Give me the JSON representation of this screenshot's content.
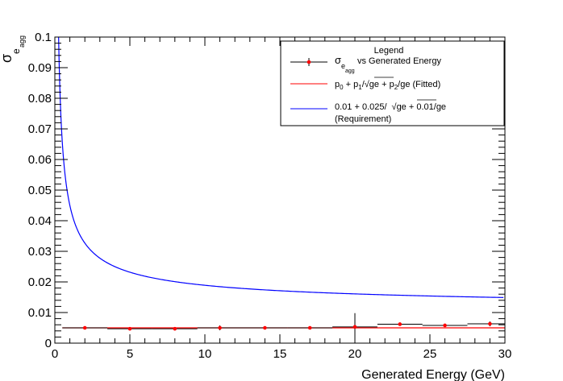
{
  "chart_data": {
    "type": "line",
    "xlabel": "Generated Energy (GeV)",
    "ylabel": {
      "main": "σ",
      "sub": "e",
      "subsub": "agg"
    },
    "xlim": [
      0,
      30
    ],
    "ylim": [
      0,
      0.1
    ],
    "x_ticks": [
      "0",
      "5",
      "10",
      "15",
      "20",
      "25",
      "30"
    ],
    "y_ticks": [
      "0",
      "0.01",
      "0.02",
      "0.03",
      "0.04",
      "0.05",
      "0.06",
      "0.07",
      "0.08",
      "0.09",
      "0.1"
    ],
    "grid": false,
    "legend_position": "top-right",
    "legend": {
      "title": "Legend",
      "entries": [
        {
          "label_parts": [
            "σ",
            "e",
            "agg",
            "vs Generated Energy"
          ],
          "color": "#000000"
        },
        {
          "label_parts": [
            "p",
            "0",
            " + p",
            "1",
            "/",
            "√ge",
            " + p",
            "2",
            "/ge (Fitted)"
          ],
          "color": "#ff0000"
        },
        {
          "label_parts": [
            "0.01 + 0.025/",
            "√ge",
            " + 0.01/ge",
            "(Requirement)"
          ],
          "color": "#0000ff"
        }
      ]
    },
    "series": [
      {
        "marker_color": "#ff0000",
        "points": [
          {
            "x": 2,
            "y": 0.005,
            "xerr": 1.5,
            "yerr": 0.0004
          },
          {
            "x": 5,
            "y": 0.0047,
            "xerr": 1.5,
            "yerr": 0.0004
          },
          {
            "x": 8,
            "y": 0.0047,
            "xerr": 1.5,
            "yerr": 0.0004
          },
          {
            "x": 11,
            "y": 0.005,
            "xerr": 1.5,
            "yerr": 0.0008
          },
          {
            "x": 14,
            "y": 0.005,
            "xerr": 1.5,
            "yerr": 0.0004
          },
          {
            "x": 17,
            "y": 0.005,
            "xerr": 1.5,
            "yerr": 0.0004
          },
          {
            "x": 20,
            "y": 0.0053,
            "xerr": 1.5,
            "yerr": 0.0045
          },
          {
            "x": 23,
            "y": 0.0062,
            "xerr": 1.5,
            "yerr": 0.0004
          },
          {
            "x": 26,
            "y": 0.0058,
            "xerr": 1.5,
            "yerr": 0.0004
          },
          {
            "x": 29,
            "y": 0.0063,
            "xerr": 1.5,
            "yerr": 0.0008
          }
        ]
      },
      {
        "color": "#ff0000",
        "x": [
          0.5,
          30
        ],
        "y": [
          0.005,
          0.005
        ]
      },
      {
        "color": "#0000ff",
        "formula": "0.01 + 0.025/sqrt(x) + 0.01/x",
        "x_range": [
          0.2,
          29.9
        ]
      }
    ]
  }
}
